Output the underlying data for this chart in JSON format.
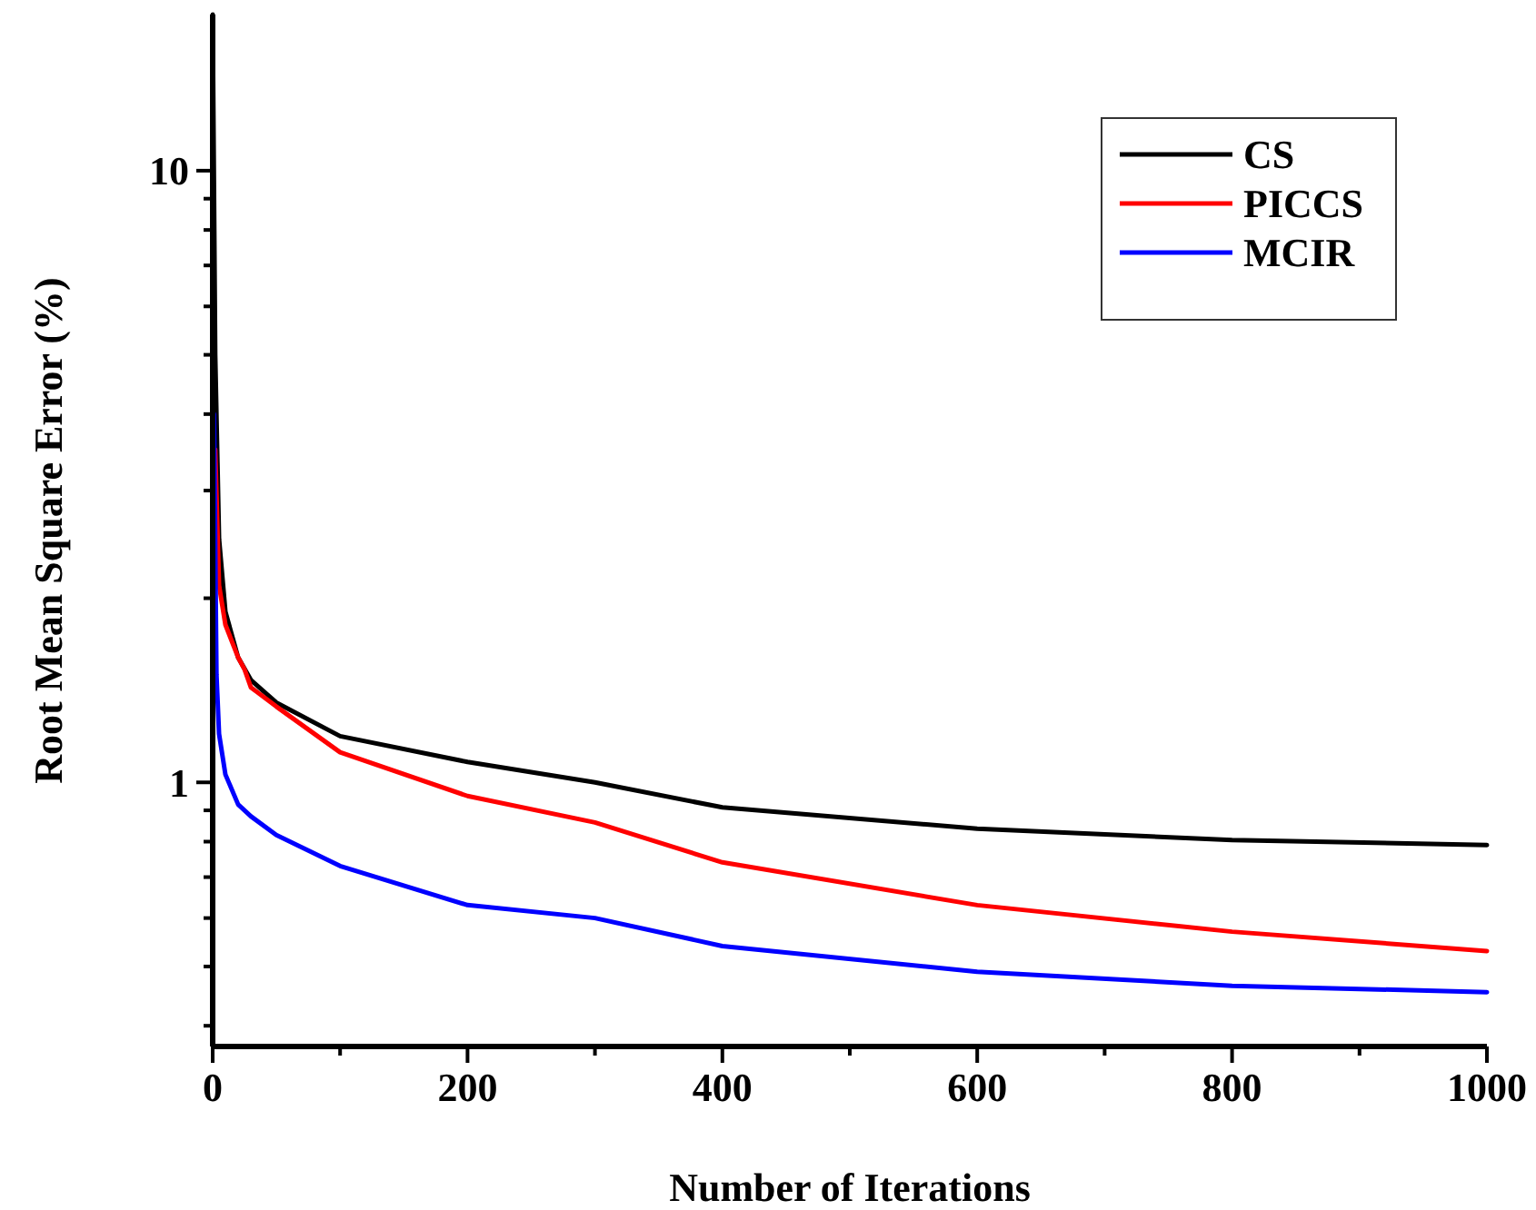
{
  "chart_data": {
    "type": "line",
    "xlabel": "Number of Iterations",
    "ylabel": "Root Mean Square Error (%)",
    "log": "y",
    "legend": "top right",
    "grid": false,
    "marker": "none",
    "line_style": "solid",
    "xlim": [
      0,
      1000
    ],
    "xticks": [
      0,
      {
        "value": 100,
        "label": null
      },
      200,
      {
        "value": 300,
        "label": null
      },
      400,
      {
        "value": 500,
        "label": null
      },
      600,
      {
        "value": 700,
        "label": null
      },
      800,
      {
        "value": 900,
        "label": null
      },
      1000
    ],
    "ylim": [
      0.37,
      18
    ],
    "yticks": [
      {
        "value": 0.4,
        "label": null
      },
      {
        "value": 0.5,
        "label": null
      },
      {
        "value": 0.6,
        "label": null
      },
      {
        "value": 0.7,
        "label": null
      },
      {
        "value": 0.8,
        "label": null
      },
      {
        "value": 0.9,
        "label": null
      },
      1,
      {
        "value": 2,
        "label": null
      },
      {
        "value": 3,
        "label": null
      },
      {
        "value": 4,
        "label": null
      },
      {
        "value": 5,
        "label": null
      },
      {
        "value": 6,
        "label": null
      },
      {
        "value": 7,
        "label": null
      },
      {
        "value": 8,
        "label": null
      },
      {
        "value": 9,
        "label": null
      },
      10
    ],
    "series": [
      {
        "name": "CS",
        "color": "#000000",
        "x": [
          0,
          2,
          5,
          10,
          20,
          30,
          50,
          100,
          200,
          300,
          400,
          600,
          800,
          1000
        ],
        "values": [
          18,
          5,
          2.5,
          1.9,
          1.6,
          1.47,
          1.35,
          1.19,
          1.08,
          1.0,
          0.91,
          0.84,
          0.805,
          0.79
        ]
      },
      {
        "name": "PICCS",
        "color": "#ff0000",
        "x": [
          2,
          5,
          10,
          20,
          25,
          30,
          50,
          100,
          200,
          300,
          400,
          600,
          800,
          1000
        ],
        "values": [
          3.5,
          2.1,
          1.81,
          1.6,
          1.53,
          1.43,
          1.33,
          1.12,
          0.95,
          0.86,
          0.74,
          0.63,
          0.57,
          0.53
        ]
      },
      {
        "name": "MCIR",
        "color": "#0000ff",
        "x": [
          1,
          3,
          5,
          10,
          20,
          30,
          50,
          100,
          200,
          300,
          400,
          600,
          800,
          1000
        ],
        "values": [
          4,
          1.5,
          1.2,
          1.03,
          0.92,
          0.88,
          0.82,
          0.73,
          0.63,
          0.6,
          0.54,
          0.49,
          0.465,
          0.454
        ]
      }
    ]
  }
}
